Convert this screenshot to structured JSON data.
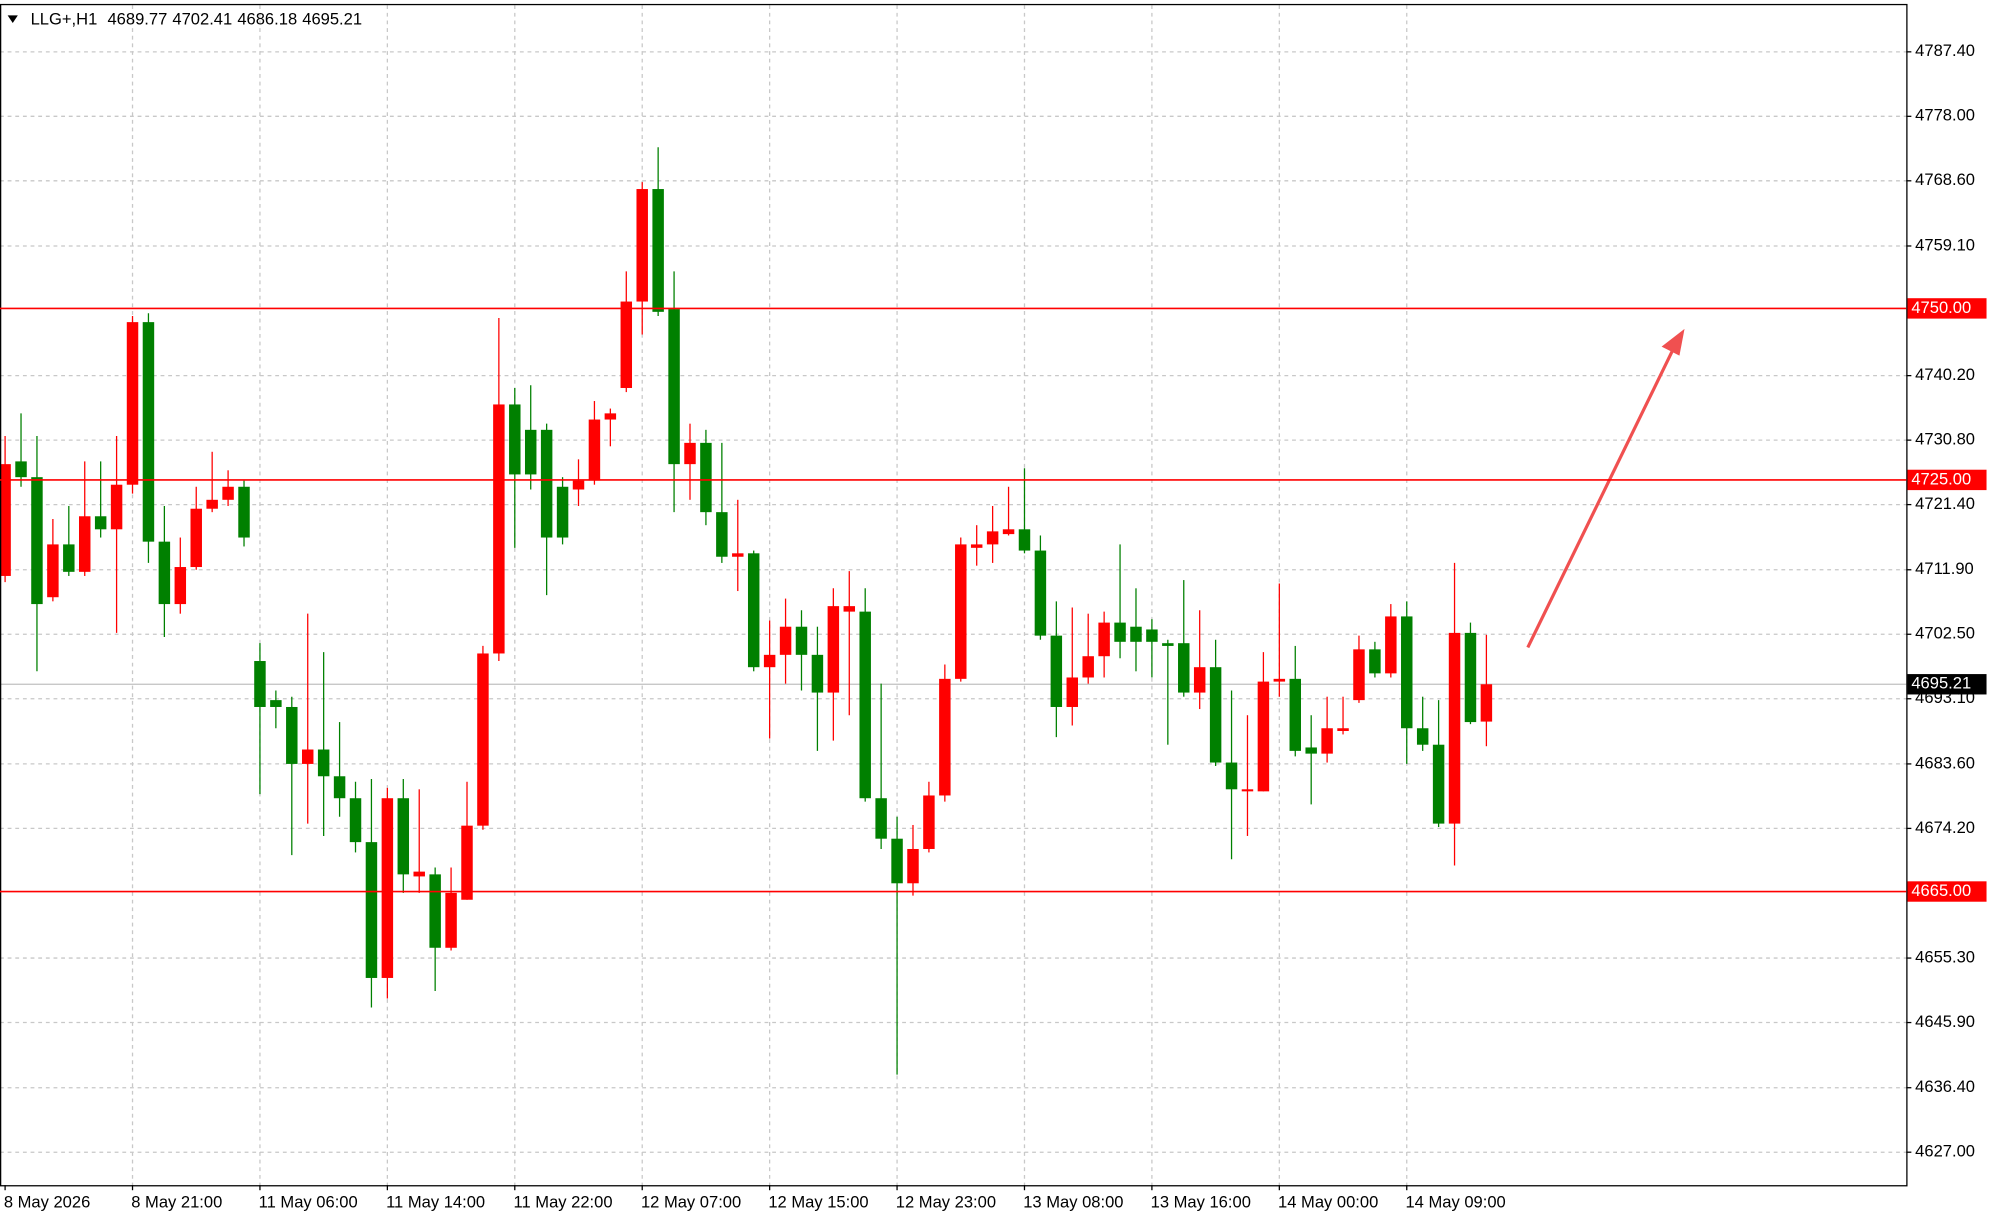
{
  "chart_data": {
    "type": "candlestick",
    "title": "LLG+,H1",
    "categories": [
      "8 May 2026",
      null,
      null,
      null,
      null,
      null,
      null,
      null,
      "8 May 21:00",
      null,
      null,
      null,
      null,
      null,
      null,
      null,
      "11 May 06:00",
      null,
      null,
      null,
      null,
      null,
      null,
      null,
      "11 May 14:00",
      null,
      null,
      null,
      null,
      null,
      null,
      null,
      "11 May 22:00",
      null,
      null,
      null,
      null,
      null,
      null,
      null,
      "12 May 07:00",
      null,
      null,
      null,
      null,
      null,
      null,
      null,
      "12 May 15:00",
      null,
      null,
      null,
      null,
      null,
      null,
      null,
      "12 May 23:00",
      null,
      null,
      null,
      null,
      null,
      null,
      null,
      "13 May 08:00",
      null,
      null,
      null,
      null,
      null,
      null,
      null,
      "13 May 16:00",
      null,
      null,
      null,
      null,
      null,
      null,
      null,
      "14 May 00:00",
      null,
      null,
      null,
      null,
      null,
      null,
      null,
      "14 May 09:00",
      null,
      null,
      null,
      null,
      null
    ],
    "open": [
      4711.0,
      4727.7,
      4725.4,
      4707.9,
      4715.6,
      4711.6,
      4719.7,
      4717.8,
      4724.3,
      4748.0,
      4716.0,
      4706.9,
      4712.3,
      4720.8,
      4722.1,
      4724.0,
      4698.6,
      4692.9,
      4691.9,
      4683.6,
      4685.7,
      4681.8,
      4678.6,
      4672.2,
      4652.4,
      4678.6,
      4667.2,
      4667.5,
      4656.8,
      4663.8,
      4674.6,
      4699.7,
      4736.0,
      4732.3,
      4732.3,
      4724.0,
      4723.6,
      4724.9,
      4733.8,
      4738.4,
      4751.0,
      4767.4,
      4749.9,
      4727.3,
      4730.4,
      4720.3,
      4713.8,
      4714.3,
      4697.7,
      4699.5,
      4703.6,
      4699.5,
      4694.0,
      4705.8,
      4705.8,
      4678.6,
      4672.7,
      4666.2,
      4671.2,
      4679.0,
      4696.0,
      4715.1,
      4715.6,
      4717.1,
      4717.8,
      4714.7,
      4702.3,
      4691.9,
      4696.2,
      4699.3,
      4704.2,
      4703.6,
      4703.2,
      4701.2,
      4701.2,
      4694.0,
      4697.7,
      4683.8,
      4679.6,
      4679.6,
      4695.6,
      4696.0,
      4686.0,
      4685.1,
      4688.4,
      4692.9,
      4700.3,
      4696.8,
      4705.1,
      4688.8,
      4686.4,
      4674.9,
      4702.7,
      4689.77
    ],
    "high": [
      4731.4,
      4734.7,
      4731.4,
      4719.3,
      4721.2,
      4727.7,
      4727.7,
      4731.4,
      4748.9,
      4749.3,
      4721.2,
      4716.6,
      4724.0,
      4729.1,
      4726.4,
      4724.9,
      4701.2,
      4694.3,
      4693.4,
      4705.5,
      4699.9,
      4689.7,
      4681.0,
      4681.4,
      4680.1,
      4681.4,
      4679.9,
      4668.5,
      4668.5,
      4681.0,
      4700.8,
      4748.6,
      4738.4,
      4738.8,
      4733.2,
      4725.4,
      4728.0,
      4736.5,
      4735.4,
      4755.4,
      4768.4,
      4773.5,
      4755.4,
      4733.2,
      4732.3,
      4730.4,
      4722.1,
      4714.7,
      4704.5,
      4707.7,
      4706.0,
      4703.6,
      4709.2,
      4711.7,
      4709.2,
      4695.3,
      4675.9,
      4674.7,
      4681.0,
      4698.1,
      4716.6,
      4718.4,
      4721.2,
      4724.0,
      4726.7,
      4716.9,
      4707.3,
      4706.4,
      4705.5,
      4705.8,
      4715.6,
      4709.2,
      4704.7,
      4701.7,
      4710.4,
      4706.0,
      4701.7,
      4694.3,
      4690.7,
      4699.9,
      4709.9,
      4700.8,
      4690.7,
      4693.4,
      4693.4,
      4702.3,
      4701.4,
      4706.9,
      4707.3,
      4693.4,
      4692.9,
      4712.9,
      4704.2,
      4702.41
    ],
    "low": [
      4710.1,
      4724.0,
      4697.1,
      4707.3,
      4711.0,
      4711.0,
      4716.6,
      4702.7,
      4723.0,
      4712.9,
      4702.1,
      4705.5,
      4711.9,
      4720.3,
      4721.2,
      4715.3,
      4679.2,
      4688.8,
      4670.3,
      4674.9,
      4673.1,
      4675.9,
      4670.7,
      4648.1,
      4649.4,
      4664.8,
      4664.8,
      4650.5,
      4656.4,
      4663.8,
      4674.0,
      4698.6,
      4715.1,
      4723.6,
      4708.2,
      4715.6,
      4721.2,
      4724.3,
      4729.9,
      4737.8,
      4746.2,
      4748.9,
      4720.3,
      4722.1,
      4718.4,
      4712.9,
      4708.8,
      4697.1,
      4687.3,
      4695.3,
      4694.3,
      4685.5,
      4687.0,
      4690.7,
      4678.1,
      4671.2,
      4638.3,
      4664.4,
      4670.7,
      4678.1,
      4695.6,
      4712.5,
      4712.9,
      4716.9,
      4714.3,
      4701.7,
      4687.5,
      4689.2,
      4695.3,
      4696.2,
      4699.0,
      4697.1,
      4696.2,
      4686.4,
      4693.4,
      4691.6,
      4683.3,
      4669.7,
      4673.1,
      4679.6,
      4693.4,
      4684.7,
      4677.7,
      4683.8,
      4687.9,
      4692.5,
      4696.2,
      4696.2,
      4683.6,
      4685.5,
      4674.4,
      4668.8,
      4689.4,
      4686.18
    ],
    "close": [
      4727.3,
      4725.4,
      4706.9,
      4715.6,
      4711.6,
      4719.7,
      4717.8,
      4724.3,
      4748.0,
      4716.0,
      4706.9,
      4712.3,
      4720.8,
      4722.1,
      4724.0,
      4716.6,
      4691.9,
      4691.9,
      4683.6,
      4685.7,
      4681.8,
      4678.6,
      4672.2,
      4652.4,
      4678.6,
      4667.5,
      4667.9,
      4656.8,
      4664.8,
      4674.6,
      4699.7,
      4736.0,
      4725.8,
      4725.8,
      4716.6,
      4716.6,
      4724.9,
      4733.8,
      4734.7,
      4751.0,
      4767.4,
      4749.5,
      4727.3,
      4730.4,
      4720.3,
      4713.8,
      4714.3,
      4697.7,
      4699.5,
      4703.6,
      4699.5,
      4694.0,
      4706.6,
      4706.6,
      4678.6,
      4672.7,
      4666.2,
      4671.2,
      4679.0,
      4696.0,
      4715.6,
      4715.6,
      4717.5,
      4717.8,
      4714.7,
      4702.3,
      4691.9,
      4696.2,
      4699.3,
      4704.2,
      4701.4,
      4701.4,
      4701.4,
      4700.8,
      4694.0,
      4697.7,
      4683.8,
      4679.9,
      4679.9,
      4695.6,
      4696.0,
      4685.5,
      4685.1,
      4688.8,
      4688.8,
      4700.3,
      4696.8,
      4705.1,
      4688.8,
      4686.4,
      4674.9,
      4702.7,
      4689.7,
      4695.21
    ],
    "up_color": "#ff0000",
    "down_color": "#008000",
    "ylim": [
      4622.2,
      4794.2
    ],
    "yticks": [
      {
        "value": 4787.4,
        "label": "4787.40"
      },
      {
        "value": 4778,
        "label": "4778.00"
      },
      {
        "value": 4768.6,
        "label": "4768.60"
      },
      {
        "value": 4759.1,
        "label": "4759.10"
      },
      {
        "value": 4740.2,
        "label": "4740.20"
      },
      {
        "value": 4730.8,
        "label": "4730.80"
      },
      {
        "value": 4721.4,
        "label": "4721.40"
      },
      {
        "value": 4711.9,
        "label": "4711.90"
      },
      {
        "value": 4702.5,
        "label": "4702.50"
      },
      {
        "value": 4693.1,
        "label": "4693.10"
      },
      {
        "value": 4683.6,
        "label": "4683.60"
      },
      {
        "value": 4674.2,
        "label": "4674.20"
      },
      {
        "value": 4655.3,
        "label": "4655.30"
      },
      {
        "value": 4645.9,
        "label": "4645.90"
      },
      {
        "value": 4636.4,
        "label": "4636.40"
      },
      {
        "value": 4627,
        "label": "4627.00"
      }
    ],
    "grid": true,
    "levels": [
      {
        "value": 4750,
        "label": "4750.00",
        "color": "#ff0000"
      },
      {
        "value": 4725,
        "label": "4725.00",
        "color": "#ff0000"
      },
      {
        "value": 4665,
        "label": "4665.00",
        "color": "#ff0000"
      }
    ],
    "last_price": {
      "value": 4695.21,
      "label": "4695.21"
    }
  }
}
